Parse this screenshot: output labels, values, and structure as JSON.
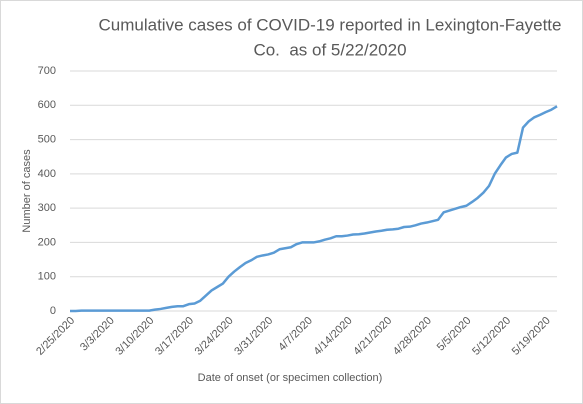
{
  "chart_data": {
    "type": "line",
    "title": [
      "Cumulative cases of COVID-19 reported in Lexington-Fayette",
      "Co.  as of 5/22/2020"
    ],
    "x_label": "Date of onset (or specimen collection)",
    "y_label": "Number of cases",
    "categories": [
      "2/25/2020",
      null,
      null,
      null,
      null,
      null,
      null,
      "3/3/2020",
      null,
      null,
      null,
      null,
      null,
      null,
      "3/10/2020",
      null,
      null,
      null,
      null,
      null,
      null,
      "3/17/2020",
      null,
      null,
      null,
      null,
      null,
      null,
      "3/24/2020",
      null,
      null,
      null,
      null,
      null,
      null,
      "3/31/2020",
      null,
      null,
      null,
      null,
      null,
      null,
      "4/7/2020",
      null,
      null,
      null,
      null,
      null,
      null,
      "4/14/2020",
      null,
      null,
      null,
      null,
      null,
      null,
      "4/21/2020",
      null,
      null,
      null,
      null,
      null,
      null,
      "4/28/2020",
      null,
      null,
      null,
      null,
      null,
      null,
      "5/5/2020",
      null,
      null,
      null,
      null,
      null,
      null,
      "5/12/2020",
      null,
      null,
      null,
      null,
      null,
      null,
      "5/19/2020",
      null,
      null
    ],
    "values": [
      0,
      0,
      1,
      1,
      1,
      1,
      1,
      1,
      1,
      1,
      1,
      1,
      1,
      1,
      1,
      4,
      6,
      9,
      12,
      14,
      14,
      20,
      22,
      30,
      45,
      60,
      70,
      80,
      100,
      115,
      128,
      140,
      148,
      158,
      162,
      165,
      170,
      180,
      183,
      186,
      195,
      200,
      200,
      200,
      203,
      208,
      212,
      218,
      218,
      220,
      223,
      224,
      226,
      229,
      232,
      234,
      237,
      238,
      240,
      245,
      246,
      250,
      255,
      258,
      262,
      266,
      288,
      293,
      298,
      303,
      307,
      318,
      330,
      345,
      365,
      400,
      425,
      448,
      458,
      462,
      535,
      553,
      565,
      572,
      580,
      587,
      597
    ],
    "color": "#5b9bd5",
    "ylim": [
      0,
      700
    ],
    "yticks": [
      0,
      100,
      200,
      300,
      400,
      500,
      600,
      700
    ],
    "grid": true
  }
}
